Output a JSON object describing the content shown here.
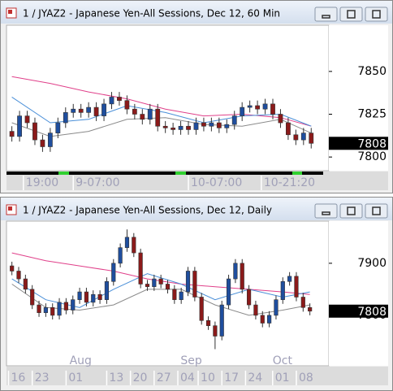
{
  "chart_data": [
    {
      "type": "candlestick",
      "title": "1 / JYAZ2 - Japanese Yen-All Sessions, Dec 12, 60 Min",
      "up_color": "#1f4e9e",
      "down_color": "#8b1a1a",
      "open": [
        7815,
        7812,
        7824,
        7820,
        7810,
        7806,
        7814,
        7820,
        7826,
        7828,
        7826,
        7829,
        7824,
        7831,
        7835,
        7833,
        7828,
        7825,
        7822,
        7828,
        7818,
        7817,
        7816,
        7818,
        7816,
        7820,
        7818,
        7820,
        7817,
        7819,
        7824,
        7829,
        7830,
        7828,
        7831,
        7825,
        7820,
        7813,
        7810,
        7814
      ],
      "high": [
        7818,
        7827,
        7827,
        7823,
        7813,
        7817,
        7823,
        7829,
        7831,
        7831,
        7832,
        7832,
        7834,
        7838,
        7838,
        7836,
        7831,
        7828,
        7831,
        7831,
        7821,
        7820,
        7821,
        7821,
        7823,
        7823,
        7823,
        7823,
        7822,
        7827,
        7832,
        7833,
        7833,
        7834,
        7834,
        7828,
        7823,
        7816,
        7817,
        7817
      ],
      "low": [
        7809,
        7809,
        7817,
        7807,
        7803,
        7803,
        7811,
        7817,
        7823,
        7823,
        7823,
        7821,
        7821,
        7828,
        7830,
        7825,
        7822,
        7819,
        7819,
        7815,
        7814,
        7813,
        7813,
        7813,
        7813,
        7815,
        7815,
        7814,
        7814,
        7816,
        7821,
        7826,
        7825,
        7825,
        7822,
        7817,
        7810,
        7807,
        7807,
        7805
      ],
      "close": [
        7812,
        7824,
        7820,
        7810,
        7806,
        7814,
        7820,
        7826,
        7828,
        7826,
        7829,
        7824,
        7831,
        7835,
        7833,
        7828,
        7825,
        7822,
        7828,
        7818,
        7817,
        7816,
        7818,
        7816,
        7820,
        7818,
        7820,
        7817,
        7819,
        7824,
        7829,
        7830,
        7828,
        7831,
        7825,
        7820,
        7813,
        7810,
        7814,
        7808
      ],
      "ma": [
        {
          "color": "#e0408a",
          "x": [
            0,
            5,
            10,
            15,
            20,
            25,
            30,
            35,
            39
          ],
          "values": [
            7847,
            7843,
            7838,
            7834,
            7828,
            7824,
            7825,
            7823,
            7818
          ]
        },
        {
          "color": "#4a8fd8",
          "x": [
            0,
            5,
            10,
            15,
            20,
            25,
            30,
            35,
            39
          ],
          "values": [
            7835,
            7820,
            7822,
            7830,
            7826,
            7820,
            7824,
            7825,
            7818
          ]
        },
        {
          "color": "#8a8a8a",
          "x": [
            0,
            5,
            10,
            15,
            20,
            25,
            30,
            35,
            39
          ],
          "values": [
            7820,
            7812,
            7815,
            7822,
            7823,
            7819,
            7818,
            7822,
            7814
          ]
        }
      ],
      "xlim": [
        -0.7,
        41.3
      ],
      "ylim": [
        7792,
        7877
      ],
      "yticks": [
        7800,
        7825,
        7850
      ],
      "xticks": [
        {
          "value": 1.5,
          "label": "19:00"
        },
        {
          "value": 8,
          "label": "9-07:00"
        },
        {
          "value": 23,
          "label": "10-07:00"
        },
        {
          "value": 32.5,
          "label": "10-21:20"
        }
      ],
      "last_price": 7808
    },
    {
      "type": "candlestick",
      "title": "1 / JYAZ2 - Japanese Yen-All Sessions, Dec 12, Daily",
      "up_color": "#1f4e9e",
      "down_color": "#8b1a1a",
      "open": [
        7895,
        7885,
        7870,
        7850,
        7820,
        7805,
        7815,
        7800,
        7825,
        7810,
        7830,
        7845,
        7825,
        7840,
        7830,
        7865,
        7900,
        7930,
        7950,
        7920,
        7860,
        7855,
        7870,
        7860,
        7850,
        7830,
        7845,
        7885,
        7835,
        7790,
        7780,
        7760,
        7820,
        7870,
        7900,
        7850,
        7820,
        7800,
        7785,
        7800,
        7830,
        7865,
        7875,
        7835,
        7815
      ],
      "high": [
        7903,
        7893,
        7878,
        7858,
        7828,
        7823,
        7823,
        7833,
        7833,
        7838,
        7853,
        7853,
        7848,
        7848,
        7873,
        7908,
        7938,
        7965,
        7958,
        7928,
        7868,
        7878,
        7878,
        7868,
        7858,
        7853,
        7893,
        7893,
        7843,
        7798,
        7788,
        7828,
        7878,
        7908,
        7908,
        7858,
        7828,
        7808,
        7808,
        7838,
        7873,
        7883,
        7883,
        7843,
        7823
      ],
      "low": [
        7877,
        7862,
        7842,
        7812,
        7797,
        7797,
        7792,
        7792,
        7802,
        7802,
        7822,
        7817,
        7817,
        7822,
        7822,
        7857,
        7892,
        7922,
        7912,
        7852,
        7847,
        7847,
        7852,
        7842,
        7822,
        7822,
        7837,
        7827,
        7782,
        7772,
        7735,
        7752,
        7812,
        7862,
        7842,
        7812,
        7792,
        7777,
        7777,
        7792,
        7822,
        7857,
        7827,
        7807,
        7800
      ],
      "close": [
        7885,
        7870,
        7850,
        7820,
        7805,
        7815,
        7800,
        7825,
        7810,
        7830,
        7845,
        7825,
        7840,
        7830,
        7865,
        7900,
        7930,
        7950,
        7920,
        7860,
        7855,
        7870,
        7860,
        7850,
        7830,
        7845,
        7885,
        7835,
        7790,
        7780,
        7760,
        7820,
        7870,
        7900,
        7850,
        7820,
        7800,
        7785,
        7800,
        7830,
        7865,
        7875,
        7835,
        7815,
        7808
      ],
      "ma": [
        {
          "color": "#e0408a",
          "x": [
            0,
            5,
            10,
            15,
            20,
            25,
            30,
            35,
            40,
            44
          ],
          "values": [
            7920,
            7905,
            7895,
            7885,
            7870,
            7860,
            7855,
            7850,
            7845,
            7840
          ]
        },
        {
          "color": "#4a8fd8",
          "x": [
            0,
            5,
            10,
            15,
            20,
            25,
            30,
            35,
            40,
            44
          ],
          "values": [
            7870,
            7830,
            7815,
            7850,
            7880,
            7860,
            7830,
            7850,
            7835,
            7845
          ]
        },
        {
          "color": "#8a8a8a",
          "x": [
            0,
            5,
            10,
            15,
            20,
            25,
            30,
            35,
            40,
            44
          ],
          "values": [
            7860,
            7815,
            7810,
            7820,
            7850,
            7850,
            7820,
            7800,
            7810,
            7820
          ]
        }
      ],
      "xlim": [
        -0.8,
        46.8
      ],
      "ylim": [
        7703,
        7981
      ],
      "yticks": [
        7800,
        7900
      ],
      "xticks": [
        {
          "value": -0.5,
          "label": "16"
        },
        {
          "value": 3,
          "label": "23"
        },
        {
          "value": 8,
          "label": "01"
        },
        {
          "value": 14,
          "label": "13"
        },
        {
          "value": 17.5,
          "label": "20"
        },
        {
          "value": 21,
          "label": "27"
        },
        {
          "value": 24.5,
          "label": "04"
        },
        {
          "value": 27.5,
          "label": "10"
        },
        {
          "value": 31,
          "label": "17"
        },
        {
          "value": 34.5,
          "label": "24"
        },
        {
          "value": 38.5,
          "label": "01"
        },
        {
          "value": 42,
          "label": "08"
        }
      ],
      "month_ticks": [
        {
          "value": 8.5,
          "label": "Aug"
        },
        {
          "value": 24.9,
          "label": "Sep"
        },
        {
          "value": 38.5,
          "label": "Oct"
        }
      ],
      "last_price": 7808
    }
  ]
}
